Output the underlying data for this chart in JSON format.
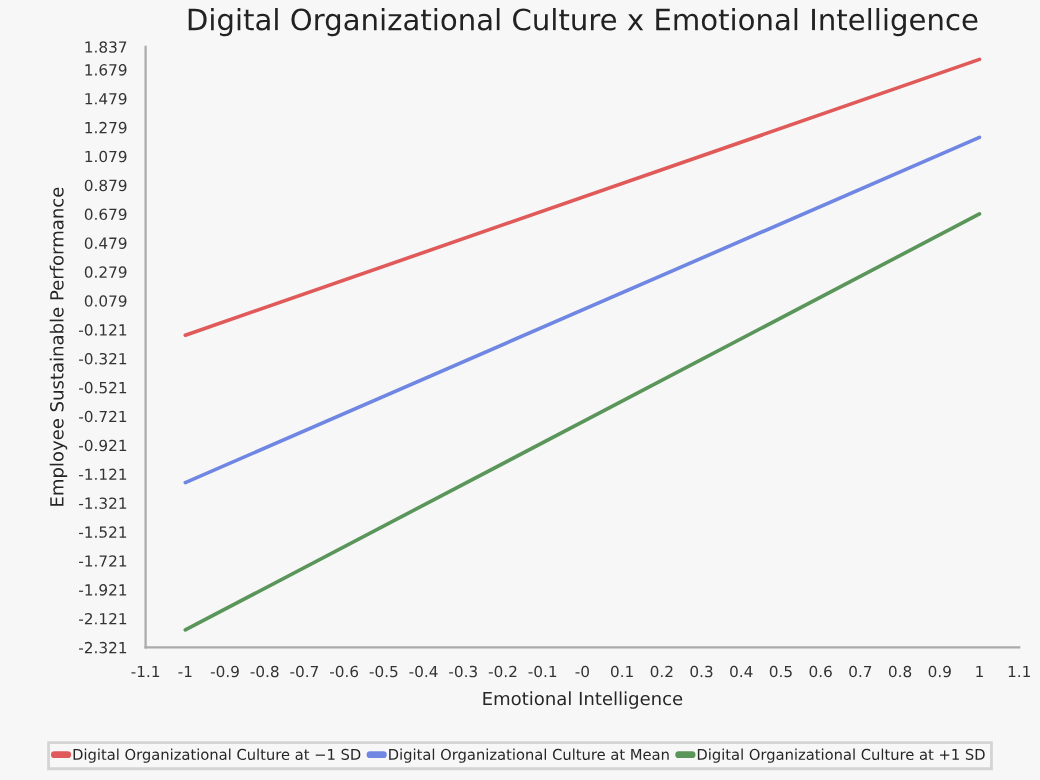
{
  "chart_data": {
    "type": "line",
    "title": "Digital Organizational Culture x Emotional Intelligence",
    "xlabel": "Emotional Intelligence",
    "ylabel": "Employee Sustainable Performance",
    "x": [
      -1,
      1
    ],
    "series": [
      {
        "name": "Digital Organizational Culture at −1 SD",
        "color": "#e05a5a",
        "values": [
          -0.16,
          1.75
        ]
      },
      {
        "name": "Digital Organizational Culture at Mean",
        "color": "#6f87e3",
        "values": [
          -1.18,
          1.21
        ]
      },
      {
        "name": "Digital Organizational Culture at +1 SD",
        "color": "#5a955a",
        "values": [
          -2.2,
          0.68
        ]
      }
    ],
    "xlim": [
      -1.1,
      1.1
    ],
    "xticks": [
      -1.1,
      -1,
      -0.9,
      -0.8,
      -0.7,
      -0.6,
      -0.5,
      -0.4,
      -0.3,
      -0.2,
      -0.1,
      {
        "value": 0,
        "label": "-0"
      },
      0.1,
      0.2,
      0.3,
      0.4,
      0.5,
      0.6,
      0.7,
      0.8,
      0.9,
      1,
      1.1
    ],
    "ylim": [
      -2.321,
      1.837
    ],
    "yticks": [
      -2.321,
      -2.121,
      -1.921,
      -1.721,
      -1.521,
      -1.321,
      -1.121,
      -0.921,
      -0.721,
      -0.521,
      -0.321,
      -0.121,
      0.079,
      0.279,
      0.479,
      0.679,
      0.879,
      1.079,
      1.279,
      1.479,
      1.679,
      1.837
    ],
    "grid": false,
    "legend": "bottom",
    "marker": "none",
    "line_style": "solid"
  }
}
